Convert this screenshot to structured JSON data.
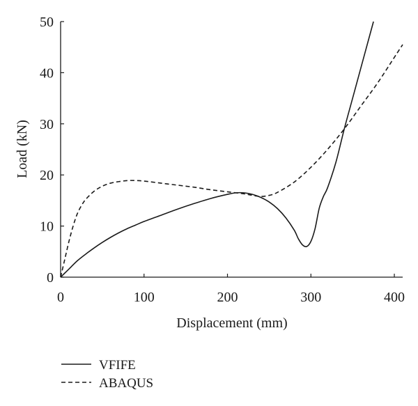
{
  "chart_data": {
    "type": "line",
    "xlabel": "Displacement (mm)",
    "ylabel": "Load (kN)",
    "xlim": [
      0,
      410
    ],
    "ylim": [
      0,
      50
    ],
    "xticks": [
      0,
      100,
      200,
      300,
      400
    ],
    "yticks": [
      0,
      10,
      20,
      30,
      40,
      50
    ],
    "grid": false,
    "legend_position": "bottom-left",
    "series": [
      {
        "name": "VFIFE",
        "style": "solid",
        "color": "#1a1a1a",
        "x": [
          0,
          5,
          10,
          20,
          30,
          40,
          50,
          60,
          70,
          80,
          90,
          100,
          120,
          140,
          160,
          180,
          200,
          210,
          220,
          230,
          240,
          250,
          260,
          270,
          280,
          285,
          290,
          295,
          300,
          305,
          310,
          315,
          320,
          330,
          340,
          350,
          360,
          370,
          375
        ],
        "y": [
          0,
          0.8,
          1.6,
          3.2,
          4.5,
          5.7,
          6.8,
          7.8,
          8.7,
          9.5,
          10.2,
          10.9,
          12.1,
          13.3,
          14.4,
          15.4,
          16.2,
          16.5,
          16.5,
          16.2,
          15.6,
          14.7,
          13.4,
          11.6,
          9.2,
          7.5,
          6.3,
          6.0,
          7.0,
          9.5,
          13.5,
          15.8,
          17.5,
          22.5,
          29.0,
          35.0,
          41.0,
          47.0,
          50.0
        ]
      },
      {
        "name": "ABAQUS",
        "style": "dashed",
        "color": "#1a1a1a",
        "x": [
          0,
          5,
          10,
          15,
          20,
          25,
          30,
          40,
          50,
          60,
          70,
          80,
          90,
          100,
          120,
          140,
          160,
          180,
          200,
          220,
          230,
          240,
          250,
          260,
          280,
          300,
          320,
          340,
          360,
          380,
          400,
          410
        ],
        "y": [
          0,
          3.5,
          7.0,
          10.0,
          12.4,
          14.0,
          15.2,
          16.8,
          17.8,
          18.4,
          18.7,
          18.9,
          18.9,
          18.8,
          18.4,
          18.0,
          17.6,
          17.1,
          16.7,
          16.3,
          16.0,
          15.8,
          16.0,
          16.6,
          18.6,
          21.5,
          25.0,
          29.0,
          33.5,
          38.0,
          43.0,
          45.5
        ]
      }
    ]
  }
}
